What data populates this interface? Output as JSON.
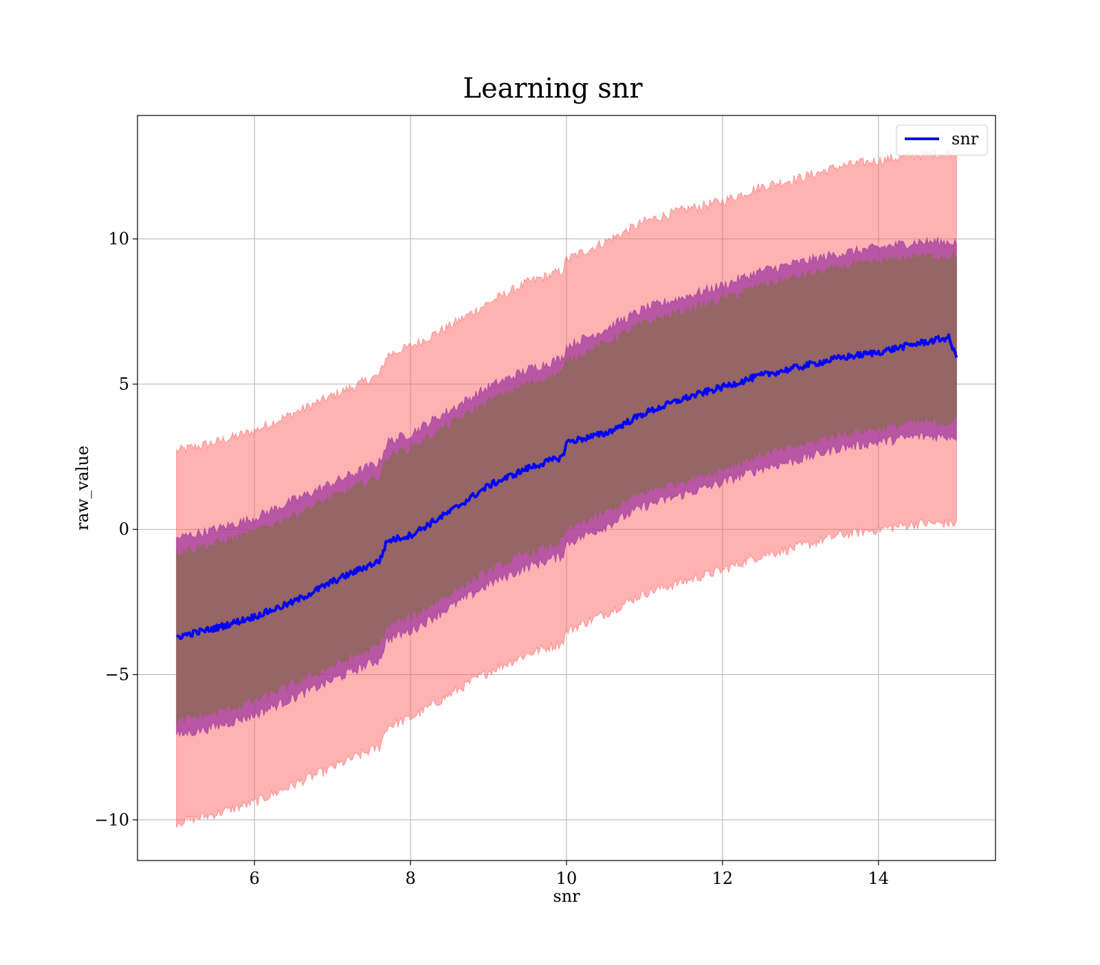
{
  "chart_data": {
    "type": "line",
    "title": "Learning snr",
    "xlabel": "snr",
    "ylabel": "raw_value",
    "xlim": [
      4.5,
      15.5
    ],
    "ylim": [
      -11.4,
      14.25
    ],
    "xticks": [
      6,
      8,
      10,
      12,
      14
    ],
    "xtick_labels": [
      "6",
      "8",
      "10",
      "12",
      "14"
    ],
    "yticks": [
      -10,
      -5,
      0,
      5,
      10
    ],
    "ytick_labels": [
      "−10",
      "−5",
      "0",
      "5",
      "10"
    ],
    "grid": true,
    "legend": {
      "position": "top-right",
      "entries": [
        "snr"
      ]
    },
    "colors": {
      "line": "#0000ff",
      "outer_band": "#ff6666",
      "mid_band": "#9b30a0",
      "inner_band": "#8b6a50",
      "grid": "#b0b0b0"
    },
    "series": [
      {
        "name": "snr",
        "style": "line",
        "x": [
          5.0,
          5.5,
          6.0,
          6.5,
          7.0,
          7.5,
          7.6,
          7.7,
          8.0,
          8.5,
          9.0,
          9.5,
          9.95,
          10.0,
          10.5,
          11.0,
          11.5,
          12.0,
          12.5,
          13.0,
          13.5,
          14.0,
          14.5,
          14.9,
          15.0
        ],
        "y": [
          -3.7,
          -3.4,
          -3.0,
          -2.5,
          -1.8,
          -1.2,
          -1.1,
          -0.4,
          -0.2,
          0.6,
          1.5,
          2.1,
          2.5,
          3.0,
          3.3,
          4.0,
          4.5,
          4.9,
          5.3,
          5.6,
          5.9,
          6.1,
          6.4,
          6.6,
          5.9
        ]
      },
      {
        "style": "band",
        "band": "outer",
        "x": [
          5.0,
          5.5,
          6.0,
          6.5,
          7.0,
          7.5,
          7.6,
          7.7,
          8.0,
          8.5,
          9.0,
          9.5,
          9.95,
          10.0,
          10.5,
          11.0,
          11.5,
          12.0,
          12.5,
          13.0,
          13.5,
          14.0,
          14.5,
          15.0
        ],
        "upper": [
          2.7,
          3.0,
          3.4,
          4.0,
          4.6,
          5.2,
          5.3,
          6.0,
          6.3,
          7.0,
          7.8,
          8.5,
          8.9,
          9.3,
          9.9,
          10.6,
          11.0,
          11.3,
          11.8,
          12.1,
          12.5,
          12.7,
          12.9,
          13.0
        ],
        "lower": [
          -10.1,
          -9.8,
          -9.4,
          -8.8,
          -8.2,
          -7.6,
          -7.5,
          -6.8,
          -6.5,
          -5.7,
          -4.9,
          -4.3,
          -3.9,
          -3.5,
          -2.9,
          -2.2,
          -1.8,
          -1.4,
          -0.9,
          -0.6,
          -0.2,
          0.0,
          0.2,
          0.2
        ]
      },
      {
        "style": "band",
        "band": "middle",
        "x": [
          5.0,
          5.5,
          6.0,
          6.5,
          7.0,
          7.5,
          7.6,
          7.7,
          8.0,
          8.5,
          9.0,
          9.5,
          9.95,
          10.0,
          10.5,
          11.0,
          11.5,
          12.0,
          12.5,
          13.0,
          13.5,
          14.0,
          14.5,
          15.0
        ],
        "upper": [
          -0.3,
          0.0,
          0.4,
          1.0,
          1.6,
          2.2,
          2.3,
          3.0,
          3.3,
          4.1,
          4.9,
          5.5,
          5.9,
          6.3,
          6.9,
          7.6,
          8.0,
          8.4,
          8.9,
          9.2,
          9.5,
          9.7,
          9.9,
          9.9
        ],
        "lower": [
          -7.1,
          -6.8,
          -6.4,
          -5.8,
          -5.2,
          -4.6,
          -4.5,
          -3.8,
          -3.5,
          -2.7,
          -1.9,
          -1.3,
          -0.9,
          -0.5,
          0.1,
          0.8,
          1.2,
          1.6,
          2.1,
          2.4,
          2.8,
          3.0,
          3.2,
          3.2
        ]
      },
      {
        "style": "band",
        "band": "inner",
        "x": [
          5.0,
          5.5,
          6.0,
          6.5,
          7.0,
          7.5,
          7.6,
          7.7,
          8.0,
          8.5,
          9.0,
          9.5,
          9.95,
          10.0,
          10.5,
          11.0,
          11.5,
          12.0,
          12.5,
          13.0,
          13.5,
          14.0,
          14.5,
          15.0
        ],
        "upper": [
          -0.8,
          -0.5,
          -0.1,
          0.5,
          1.1,
          1.7,
          1.8,
          2.5,
          2.8,
          3.6,
          4.4,
          5.0,
          5.4,
          5.8,
          6.4,
          7.1,
          7.5,
          7.9,
          8.4,
          8.7,
          9.0,
          9.2,
          9.4,
          9.4
        ],
        "lower": [
          -6.6,
          -6.3,
          -5.9,
          -5.3,
          -4.7,
          -4.1,
          -4.0,
          -3.3,
          -3.0,
          -2.2,
          -1.4,
          -0.8,
          -0.4,
          0.0,
          0.6,
          1.3,
          1.7,
          2.1,
          2.6,
          2.9,
          3.3,
          3.5,
          3.7,
          3.7
        ]
      }
    ]
  }
}
